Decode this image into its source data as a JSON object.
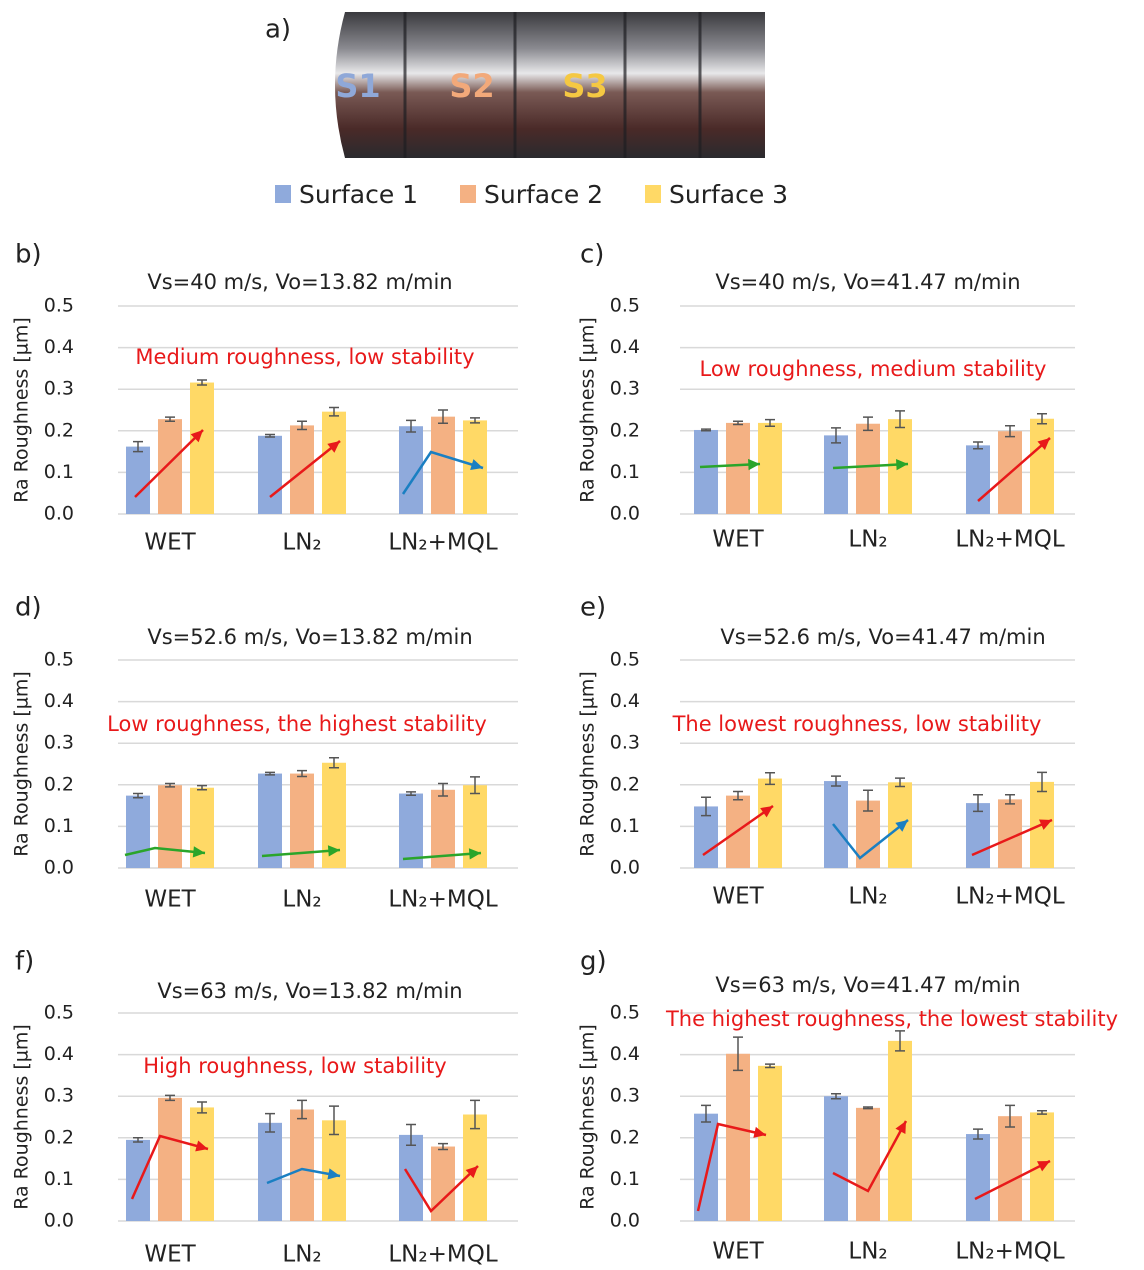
{
  "photo": {
    "panel_label": "a)",
    "labels": [
      "S1",
      "S2",
      "S3"
    ]
  },
  "legend": [
    {
      "name": "Surface 1",
      "color": "#8faadc"
    },
    {
      "name": "Surface 2",
      "color": "#f4b183"
    },
    {
      "name": "Surface 3",
      "color": "#ffd966"
    }
  ],
  "chart_data": [
    {
      "type": "bar",
      "panel_label": "b)",
      "title": "Vs=40 m/s, Vo=13.82 m/min",
      "annotation": "Medium roughness, low stability",
      "y_label": "Ra Roughness [µm]",
      "categories": [
        "WET",
        "LN₂",
        "LN₂+MQL"
      ],
      "ylim": [
        0,
        0.5
      ],
      "yticks": [
        {
          "value": 0,
          "label": "0.0"
        },
        0.1,
        0.2,
        0.3,
        0.4,
        0.5
      ],
      "grid": true,
      "series": [
        {
          "color": "#8faadc",
          "values": [
            0.162,
            0.188,
            0.211
          ],
          "errors": [
            0.012,
            0.003,
            0.014
          ]
        },
        {
          "color": "#f4b183",
          "values": [
            0.228,
            0.213,
            0.234
          ],
          "errors": [
            0.005,
            0.01,
            0.016
          ]
        },
        {
          "color": "#ffd966",
          "values": [
            0.316,
            0.246,
            0.225
          ],
          "errors": [
            0.006,
            0.01,
            0.006
          ]
        }
      ]
    },
    {
      "type": "bar",
      "panel_label": "c)",
      "title": "Vs=40 m/s, Vo=41.47 m/min",
      "annotation": "Low roughness, medium stability",
      "y_label": "Ra Roughness [µm]",
      "categories": [
        "WET",
        "LN₂",
        "LN₂+MQL"
      ],
      "ylim": [
        0,
        0.5
      ],
      "yticks": [
        {
          "value": 0,
          "label": "0.0"
        },
        0.1,
        0.2,
        0.3,
        0.4,
        0.5
      ],
      "grid": true,
      "series": [
        {
          "color": "#8faadc",
          "values": [
            0.202,
            0.189,
            0.165
          ],
          "errors": [
            0.002,
            0.018,
            0.008
          ]
        },
        {
          "color": "#f4b183",
          "values": [
            0.219,
            0.217,
            0.199
          ],
          "errors": [
            0.004,
            0.016,
            0.013
          ]
        },
        {
          "color": "#ffd966",
          "values": [
            0.219,
            0.228,
            0.229
          ],
          "errors": [
            0.008,
            0.02,
            0.012
          ]
        }
      ]
    },
    {
      "type": "bar",
      "panel_label": "d)",
      "title": "Vs=52.6 m/s, Vo=13.82 m/min",
      "annotation": "Low roughness, the highest stability",
      "y_label": "Ra Roughness [µm]",
      "categories": [
        "WET",
        "LN₂",
        "LN₂+MQL"
      ],
      "ylim": [
        0,
        0.5
      ],
      "yticks": [
        {
          "value": 0,
          "label": "0.0"
        },
        0.1,
        0.2,
        0.3,
        0.4,
        0.5
      ],
      "grid": true,
      "series": [
        {
          "color": "#8faadc",
          "values": [
            0.174,
            0.227,
            0.179
          ],
          "errors": [
            0.005,
            0.003,
            0.004
          ]
        },
        {
          "color": "#f4b183",
          "values": [
            0.199,
            0.227,
            0.188
          ],
          "errors": [
            0.004,
            0.007,
            0.015
          ]
        },
        {
          "color": "#ffd966",
          "values": [
            0.193,
            0.253,
            0.199
          ],
          "errors": [
            0.005,
            0.012,
            0.02
          ]
        }
      ]
    },
    {
      "type": "bar",
      "panel_label": "e)",
      "title": "Vs=52.6 m/s, Vo=41.47 m/min",
      "annotation": "The lowest roughness, low stability",
      "y_label": "Ra Roughness [µm]",
      "categories": [
        "WET",
        "LN₂",
        "LN₂+MQL"
      ],
      "ylim": [
        0,
        0.5
      ],
      "yticks": [
        {
          "value": 0,
          "label": "0.0"
        },
        0.1,
        0.2,
        0.3,
        0.4,
        0.5
      ],
      "grid": true,
      "series": [
        {
          "color": "#8faadc",
          "values": [
            0.148,
            0.209,
            0.156
          ],
          "errors": [
            0.022,
            0.012,
            0.02
          ]
        },
        {
          "color": "#f4b183",
          "values": [
            0.174,
            0.162,
            0.165
          ],
          "errors": [
            0.01,
            0.025,
            0.011
          ]
        },
        {
          "color": "#ffd966",
          "values": [
            0.215,
            0.206,
            0.207
          ],
          "errors": [
            0.014,
            0.01,
            0.023
          ]
        }
      ]
    },
    {
      "type": "bar",
      "panel_label": "f)",
      "title": "Vs=63 m/s, Vo=13.82 m/min",
      "annotation": "High roughness, low stability",
      "y_label": "Ra Roughness [µm]",
      "categories": [
        "WET",
        "LN₂",
        "LN₂+MQL"
      ],
      "ylim": [
        0,
        0.5
      ],
      "yticks": [
        {
          "value": 0,
          "label": "0.0"
        },
        0.1,
        0.2,
        0.3,
        0.4,
        0.5
      ],
      "grid": true,
      "series": [
        {
          "color": "#8faadc",
          "values": [
            0.195,
            0.236,
            0.207
          ],
          "errors": [
            0.005,
            0.022,
            0.025
          ]
        },
        {
          "color": "#f4b183",
          "values": [
            0.296,
            0.268,
            0.179
          ],
          "errors": [
            0.006,
            0.022,
            0.007
          ]
        },
        {
          "color": "#ffd966",
          "values": [
            0.273,
            0.242,
            0.256
          ],
          "errors": [
            0.013,
            0.034,
            0.034
          ]
        }
      ]
    },
    {
      "type": "bar",
      "panel_label": "g)",
      "title": "Vs=63 m/s, Vo=41.47 m/min",
      "annotation": "The highest roughness, the lowest stability",
      "y_label": "Ra Roughness [µm]",
      "categories": [
        "WET",
        "LN₂",
        "LN₂+MQL"
      ],
      "ylim": [
        0,
        0.5
      ],
      "yticks": [
        {
          "value": 0,
          "label": "0.0"
        },
        0.1,
        0.2,
        0.3,
        0.4,
        0.5
      ],
      "grid": true,
      "series": [
        {
          "color": "#8faadc",
          "values": [
            0.258,
            0.3,
            0.209
          ],
          "errors": [
            0.02,
            0.006,
            0.012
          ]
        },
        {
          "color": "#f4b183",
          "values": [
            0.402,
            0.272,
            0.252
          ],
          "errors": [
            0.04,
            0.002,
            0.026
          ]
        },
        {
          "color": "#ffd966",
          "values": [
            0.373,
            0.433,
            0.261
          ],
          "errors": [
            0.004,
            0.024,
            0.004
          ]
        }
      ]
    }
  ]
}
